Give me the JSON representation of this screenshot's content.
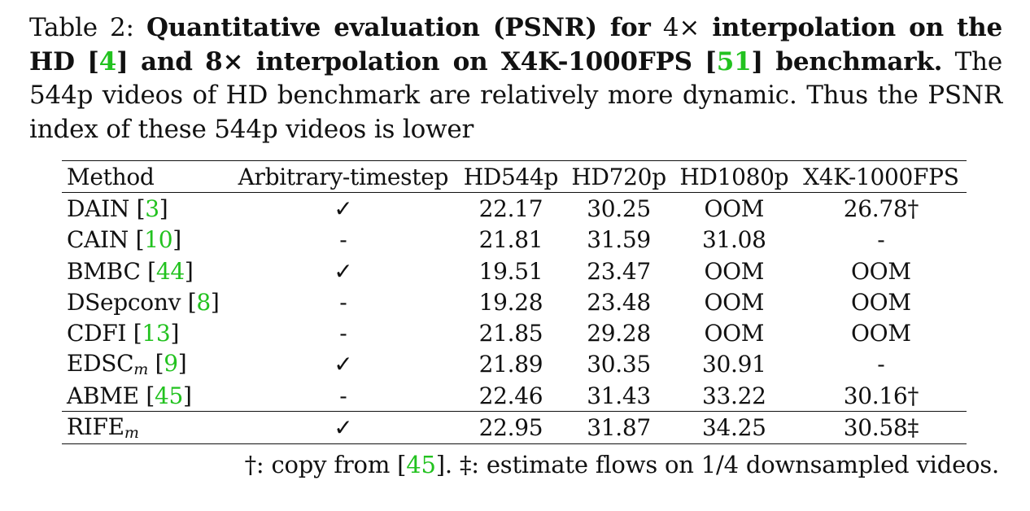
{
  "caption": {
    "label": "Table 2:",
    "title_a": "Quantitative evaluation (PSNR) for",
    "title_x4": "4×",
    "title_b": "interpolation on the HD",
    "cite_hd": "4",
    "title_c": "and",
    "title_x8": "8×",
    "title_d": "interpolation on X4K-1000FPS",
    "cite_x4k": "51",
    "title_e": "benchmark.",
    "body": "The 544p videos of HD benchmark are relatively more dynamic. Thus the PSNR index of these 544p videos is lower"
  },
  "table": {
    "headers": [
      "Method",
      "Arbitrary-timestep",
      "HD544p",
      "HD720p",
      "HD1080p",
      "X4K-1000FPS"
    ],
    "rows": [
      {
        "method": "DAIN",
        "sub": "",
        "cite": "3",
        "arbitrary": "✓",
        "hd544": "22.17",
        "hd720": "30.25",
        "hd1080": "OOM",
        "x4k": "26.78†"
      },
      {
        "method": "CAIN",
        "sub": "",
        "cite": "10",
        "arbitrary": "-",
        "hd544": "21.81",
        "hd720": "31.59",
        "hd1080": "31.08",
        "x4k": "-"
      },
      {
        "method": "BMBC",
        "sub": "",
        "cite": "44",
        "arbitrary": "✓",
        "hd544": "19.51",
        "hd720": "23.47",
        "hd1080": "OOM",
        "x4k": "OOM"
      },
      {
        "method": "DSepconv",
        "sub": "",
        "cite": "8",
        "arbitrary": "-",
        "hd544": "19.28",
        "hd720": "23.48",
        "hd1080": "OOM",
        "x4k": "OOM"
      },
      {
        "method": "CDFI",
        "sub": "",
        "cite": "13",
        "arbitrary": "-",
        "hd544": "21.85",
        "hd720": "29.28",
        "hd1080": "OOM",
        "x4k": "OOM"
      },
      {
        "method": "EDSC",
        "sub": "m",
        "cite": "9",
        "arbitrary": "✓",
        "hd544": "21.89",
        "hd720": "30.35",
        "hd1080": "30.91",
        "x4k": "-"
      },
      {
        "method": "ABME",
        "sub": "",
        "cite": "45",
        "arbitrary": "-",
        "hd544": "22.46",
        "hd720": "31.43",
        "hd1080": "33.22",
        "x4k": "30.16†"
      }
    ],
    "final_row": {
      "method": "RIFE",
      "sub": "m",
      "arbitrary": "✓",
      "hd544": "22.95",
      "hd720": "31.87",
      "hd1080": "34.25",
      "x4k": "30.58‡"
    }
  },
  "footnote": {
    "part1": "†: copy from",
    "cite": "45",
    "part2": ". ‡: estimate flows on 1/4 downsampled videos."
  },
  "colors": {
    "citation": "#22c21f",
    "text": "#111111"
  }
}
